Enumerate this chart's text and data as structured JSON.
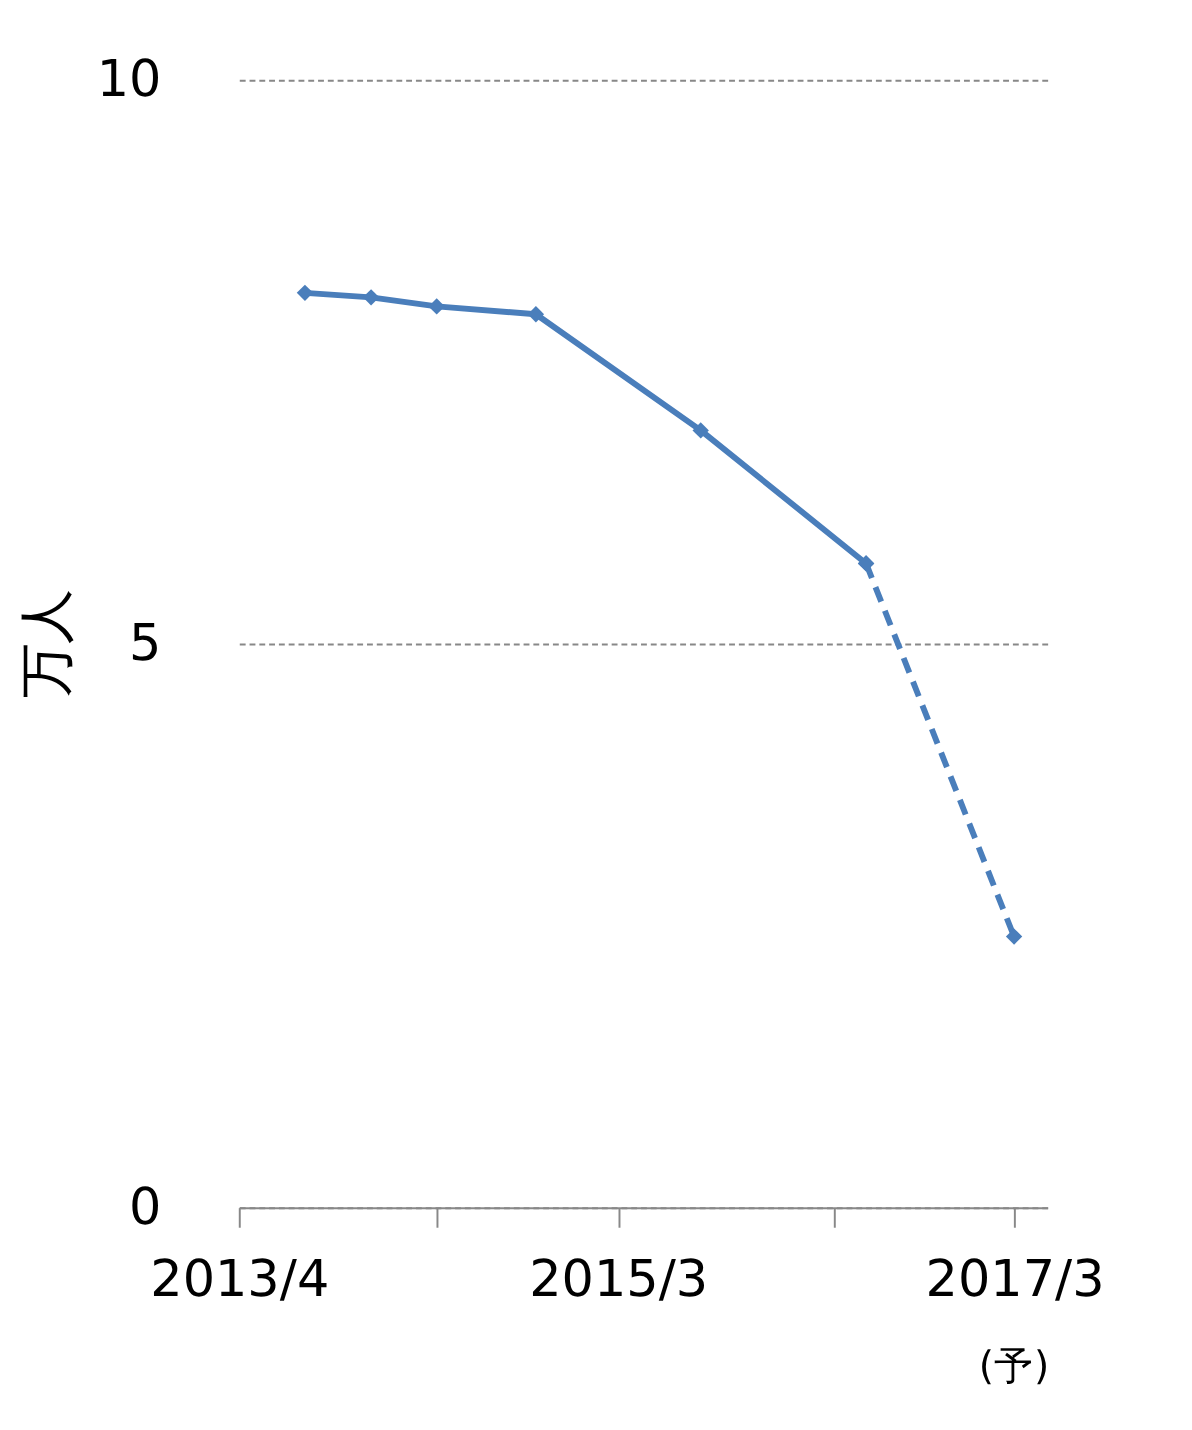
{
  "chart_data": {
    "type": "line",
    "ylabel": "万人",
    "series": [
      {
        "color": "#4a7ebb",
        "x": [
          "2013-08",
          "2013-12",
          "2014-04",
          "2014-10",
          "2015-08",
          "2016-06"
        ],
        "values": [
          8.11,
          8.07,
          7.99,
          7.92,
          6.89,
          5.71
        ],
        "line_style": "solid"
      },
      {
        "color": "#4a7ebb",
        "x": [
          "2016-06",
          "2017-03"
        ],
        "values": [
          5.71,
          2.4
        ],
        "line_style": "dashed"
      }
    ],
    "xlim": [
      "2013-04",
      "2017-05"
    ],
    "xticks": [
      {
        "value": "2013-04",
        "label": "2013/4"
      },
      {
        "value": "2014-04",
        "label": null
      },
      {
        "value": "2015-03",
        "label": "2015/3"
      },
      {
        "value": "2016-04",
        "label": null
      },
      {
        "value": "2017-03",
        "label": "2017/3"
      }
    ],
    "ylim": [
      0,
      10
    ],
    "yticks": [
      0,
      5,
      10
    ],
    "grid": "y",
    "marker": "diamond",
    "annotations": [
      "(予)"
    ]
  }
}
